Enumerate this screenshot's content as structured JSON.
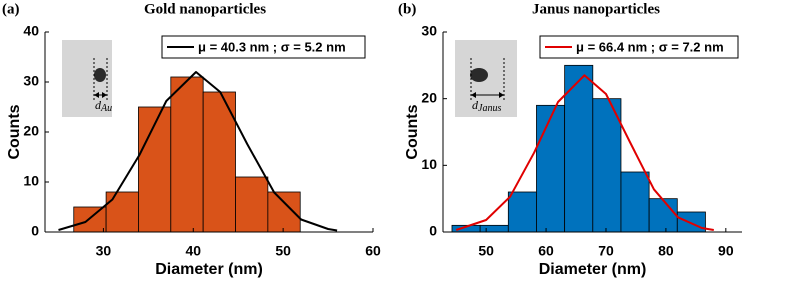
{
  "chart_data": [
    {
      "type": "histogram",
      "panel_label": "(a)",
      "title": "Gold nanoparticles",
      "xlabel": "Diameter (nm)",
      "ylabel": "Counts",
      "bins": [
        26.7,
        30.3,
        33.9,
        37.5,
        41.1,
        44.7,
        48.3,
        51.9
      ],
      "values": [
        5,
        8,
        25,
        31,
        28,
        11,
        8
      ],
      "color": "#d95319",
      "xlim": [
        23.5,
        60
      ],
      "xticks": [
        30,
        40,
        50,
        60
      ],
      "ylim": [
        0,
        40
      ],
      "yticks": [
        0,
        10,
        20,
        30,
        40
      ],
      "fit": {
        "name": "μ = 40.3 nm ; σ = 5.2 nm",
        "color": "#000000",
        "x": [
          25,
          28,
          31,
          34,
          37,
          40.3,
          43,
          46,
          49,
          52,
          55,
          56
        ],
        "values": [
          0.4,
          2.0,
          6.5,
          15.4,
          26.2,
          32,
          28.0,
          17.6,
          7.9,
          2.5,
          0.6,
          0.3
        ]
      },
      "inset_label": {
        "symbol": "d",
        "subscript": "Au"
      }
    },
    {
      "type": "histogram",
      "panel_label": "(b)",
      "title": "Janus nanoparticles",
      "xlabel": "Diameter (nm)",
      "ylabel": "Counts",
      "bins": [
        44.3,
        49.0,
        53.7,
        58.4,
        63.1,
        67.8,
        72.5,
        77.2,
        81.9,
        86.6
      ],
      "values": [
        1,
        1,
        6,
        19,
        25,
        20,
        9,
        5,
        3
      ],
      "color": "#0072bd",
      "xlim": [
        42.8,
        92.7
      ],
      "xticks": [
        50,
        60,
        70,
        80,
        90
      ],
      "ylim": [
        0,
        30
      ],
      "yticks": [
        0,
        10,
        20,
        30
      ],
      "fit": {
        "name": "μ = 66.4 nm ; σ = 7.2 nm",
        "color": "#e00000",
        "x": [
          45,
          50,
          54,
          58,
          62,
          66.4,
          70,
          74,
          78,
          82,
          86,
          88
        ],
        "values": [
          0.3,
          1.8,
          5.3,
          11.9,
          19.5,
          23.5,
          20.7,
          13.5,
          6.4,
          2.2,
          0.6,
          0.3
        ]
      },
      "inset_label": {
        "symbol": "d",
        "subscript": "Janus"
      }
    }
  ]
}
